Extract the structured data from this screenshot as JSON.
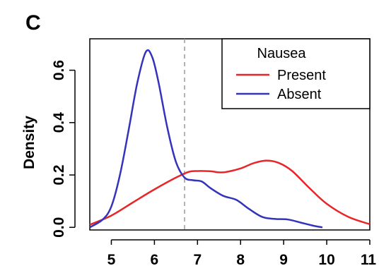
{
  "panel_label": "C",
  "chart_data": {
    "type": "line",
    "title": "",
    "xlabel": "",
    "ylabel": "Density",
    "xlim": [
      4.5,
      11.0
    ],
    "ylim": [
      -0.01,
      0.72
    ],
    "xticks": [
      5,
      6,
      7,
      8,
      9,
      10,
      11
    ],
    "yticks": [
      0.0,
      0.2,
      0.4,
      0.6
    ],
    "ytick_labels": [
      "0.0",
      "0.2",
      "0.4",
      "0.6"
    ],
    "grid": false,
    "legend": {
      "title": "Nausea",
      "position": "top-right"
    },
    "reference_line": {
      "x": 6.7,
      "style": "dashed",
      "color": "#999999"
    },
    "series": [
      {
        "name": "Present",
        "color": "#e8262a",
        "x": [
          4.5,
          5.0,
          5.5,
          6.0,
          6.5,
          6.8,
          7.0,
          7.3,
          7.6,
          8.0,
          8.3,
          8.6,
          8.9,
          9.2,
          9.6,
          10.0,
          10.5,
          11.0
        ],
        "y": [
          0.01,
          0.045,
          0.095,
          0.145,
          0.19,
          0.212,
          0.215,
          0.214,
          0.21,
          0.225,
          0.245,
          0.255,
          0.245,
          0.215,
          0.15,
          0.09,
          0.04,
          0.012
        ]
      },
      {
        "name": "Absent",
        "color": "#3333bb",
        "x": [
          4.5,
          4.8,
          5.0,
          5.2,
          5.4,
          5.6,
          5.8,
          5.95,
          6.1,
          6.3,
          6.5,
          6.7,
          6.9,
          7.1,
          7.3,
          7.6,
          7.9,
          8.2,
          8.5,
          8.8,
          9.1,
          9.4,
          9.7,
          9.9
        ],
        "y": [
          0.0,
          0.03,
          0.08,
          0.2,
          0.37,
          0.55,
          0.67,
          0.65,
          0.55,
          0.38,
          0.25,
          0.19,
          0.18,
          0.175,
          0.15,
          0.12,
          0.105,
          0.07,
          0.04,
          0.032,
          0.03,
          0.018,
          0.006,
          0.0
        ]
      }
    ]
  }
}
